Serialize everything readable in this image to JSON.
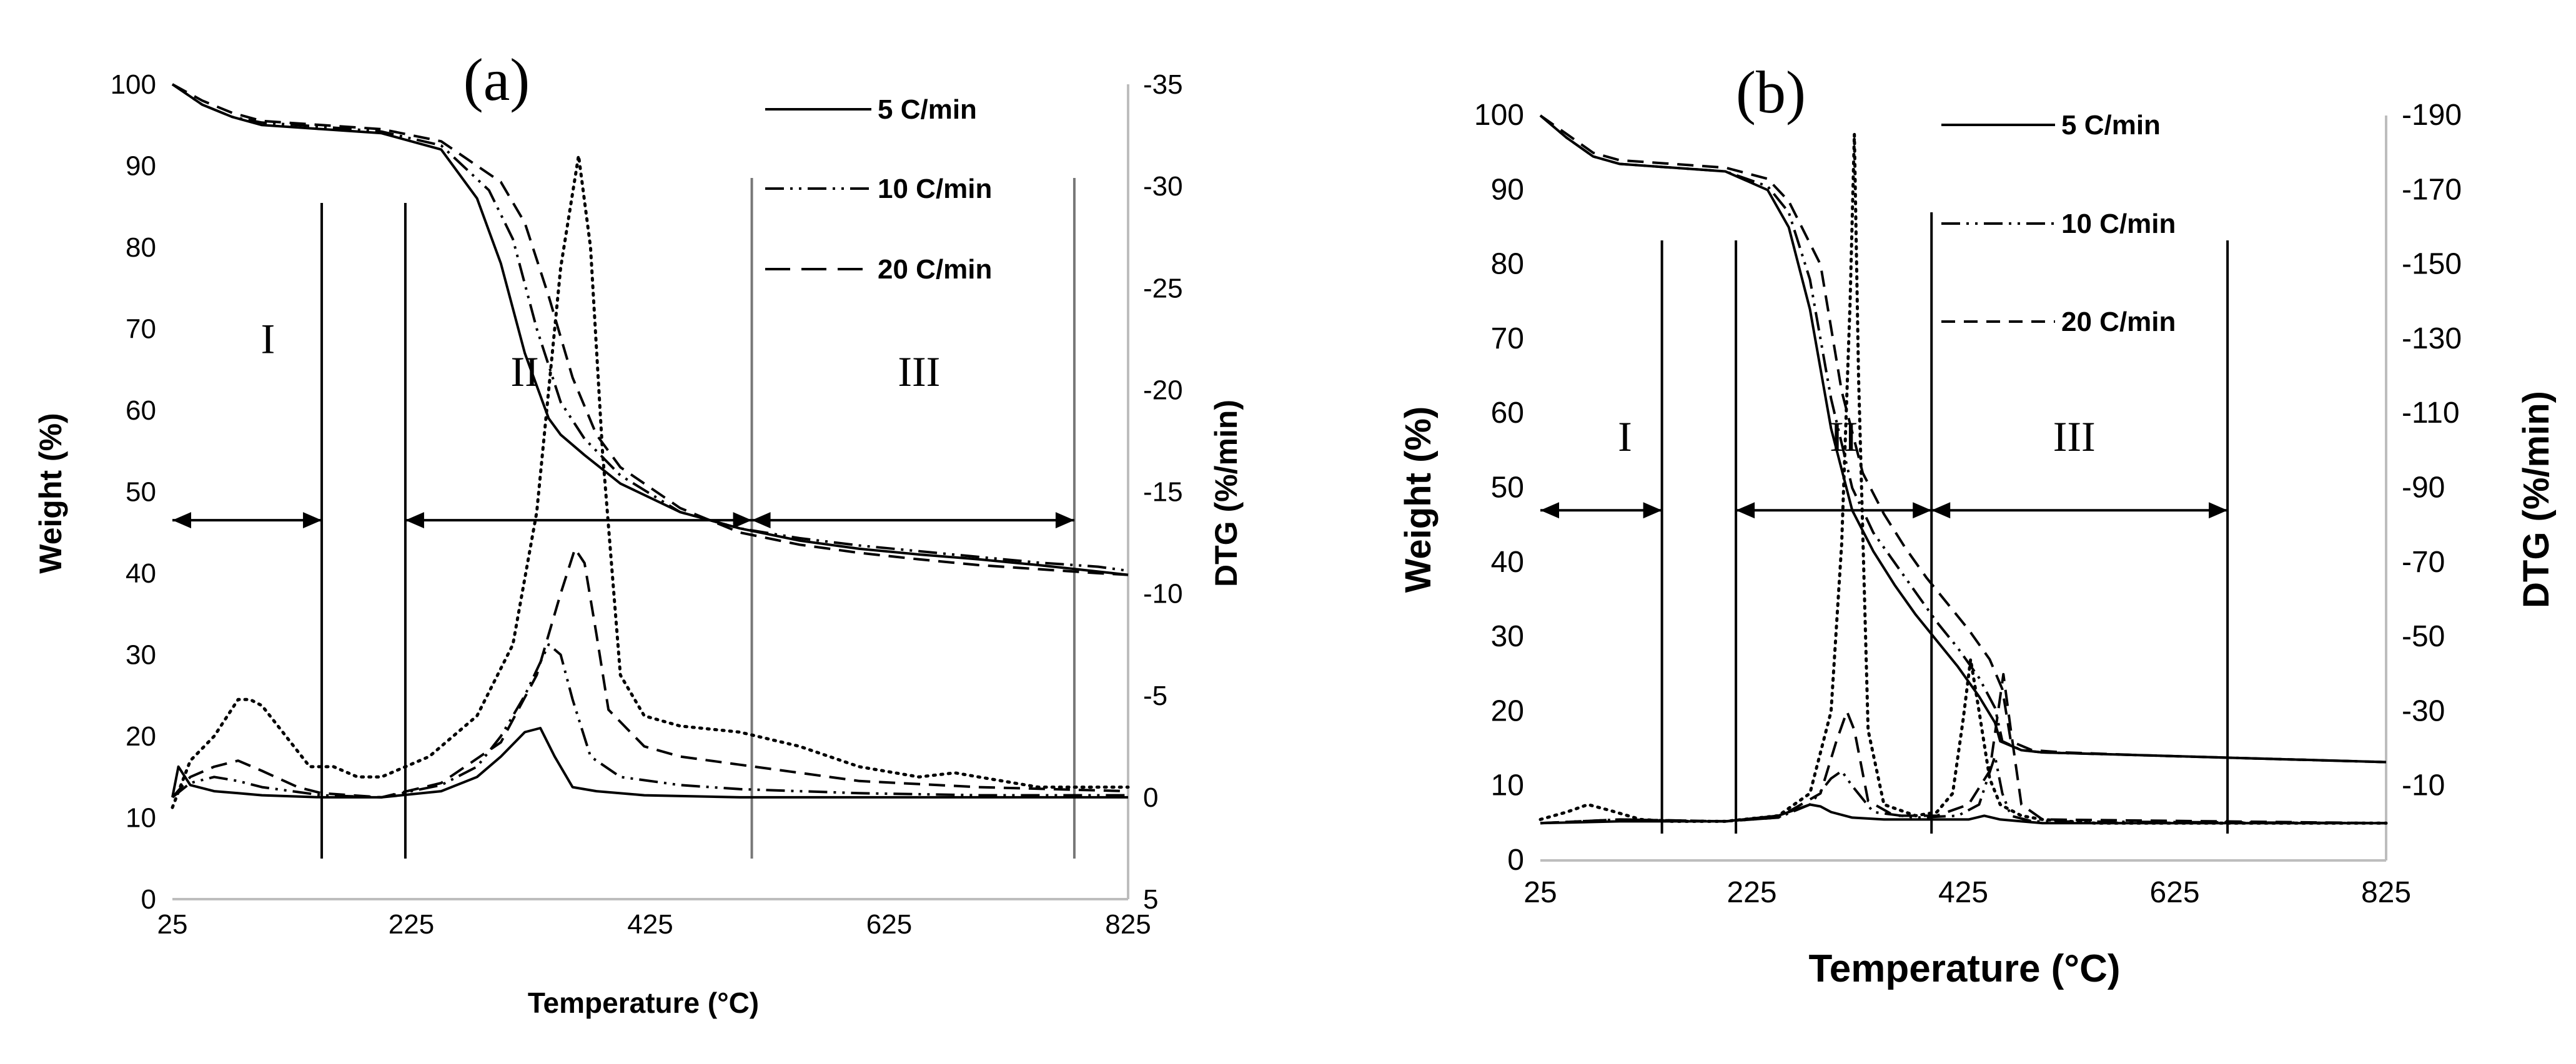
{
  "chart_data": [
    {
      "type": "line",
      "panel_label": "(a)",
      "xlabel": "Temperature (°C)",
      "ylabel": "Weight (%)",
      "y2label": "DTG (%/min)",
      "xlim": [
        25,
        825
      ],
      "ylim": [
        0,
        100
      ],
      "y2lim": [
        5,
        -35
      ],
      "x_ticks": [
        "25",
        "225",
        "425",
        "625",
        "825"
      ],
      "y_ticks": [
        "0",
        "10",
        "20",
        "30",
        "40",
        "50",
        "60",
        "70",
        "80",
        "90",
        "100"
      ],
      "y2_ticks": [
        "5",
        "0",
        "-5",
        "-10",
        "-15",
        "-20",
        "-25",
        "-30",
        "-35"
      ],
      "legend": [
        "5 C/min",
        "10 C/min",
        "20 C/min"
      ],
      "regions": [
        {
          "label": "I",
          "from": 25,
          "to": 150,
          "label_x": 105,
          "label_y": 67
        },
        {
          "label": "II",
          "from": 220,
          "to": 510,
          "label_x": 320,
          "label_y": 63
        },
        {
          "label": "III",
          "from": 510,
          "to": 780,
          "label_x": 650,
          "label_y": 63
        }
      ],
      "boundaries": [
        150,
        220,
        510,
        780
      ],
      "arrow_y": 46.5,
      "series": [
        {
          "name": "5 C/min",
          "axis": "weight",
          "style": "solid",
          "x": [
            25,
            50,
            75,
            100,
            150,
            200,
            250,
            280,
            300,
            320,
            340,
            350,
            370,
            400,
            450,
            500,
            550,
            600,
            650,
            700,
            750,
            800,
            825
          ],
          "y": [
            100,
            97.5,
            96,
            95,
            94.5,
            94,
            92,
            86,
            78,
            67,
            59,
            57,
            54.5,
            51,
            47.5,
            45.5,
            44,
            43,
            42.3,
            41.7,
            41,
            40.2,
            39.8
          ]
        },
        {
          "name": "10 C/min",
          "axis": "weight",
          "style": "dashdot",
          "x": [
            25,
            50,
            75,
            100,
            150,
            200,
            250,
            290,
            310,
            330,
            350,
            370,
            400,
            450,
            500,
            550,
            600,
            650,
            700,
            750,
            800,
            825
          ],
          "y": [
            100,
            97.5,
            96,
            95.3,
            94.8,
            94.2,
            92.5,
            87,
            81,
            70,
            61,
            56.5,
            52,
            47.5,
            45.5,
            44.3,
            43.4,
            42.7,
            42,
            41.3,
            40.8,
            40.3
          ]
        },
        {
          "name": "20 C/min",
          "axis": "weight",
          "style": "dashed",
          "x": [
            25,
            50,
            75,
            100,
            150,
            200,
            250,
            300,
            320,
            340,
            360,
            380,
            400,
            450,
            500,
            550,
            600,
            650,
            700,
            750,
            800,
            825
          ],
          "y": [
            100,
            98,
            96.5,
            95.5,
            95,
            94.5,
            93,
            88,
            83,
            74,
            64,
            57,
            53,
            48,
            45,
            43.5,
            42.5,
            41.7,
            41,
            40.5,
            40,
            39.8
          ]
        },
        {
          "name": "DTG 5 C/min",
          "axis": "dtg",
          "style": "solid",
          "x": [
            25,
            30,
            40,
            60,
            80,
            100,
            150,
            200,
            250,
            280,
            300,
            320,
            333,
            345,
            360,
            380,
            420,
            500,
            600,
            700,
            825
          ],
          "y": [
            0,
            -1.5,
            -0.6,
            -0.3,
            -0.2,
            -0.1,
            0,
            0,
            -0.3,
            -1,
            -2,
            -3.2,
            -3.4,
            -2,
            -0.5,
            -0.3,
            -0.1,
            0,
            0,
            0,
            0
          ]
        },
        {
          "name": "DTG 10 C/min",
          "axis": "dtg",
          "style": "dashdot",
          "x": [
            25,
            40,
            60,
            80,
            100,
            150,
            200,
            250,
            280,
            300,
            320,
            340,
            350,
            360,
            375,
            400,
            450,
            500,
            600,
            700,
            825
          ],
          "y": [
            0,
            -0.7,
            -1,
            -0.8,
            -0.5,
            -0.1,
            0,
            -0.6,
            -1.5,
            -3,
            -5,
            -7.5,
            -7,
            -4.8,
            -2,
            -1,
            -0.6,
            -0.4,
            -0.2,
            -0.1,
            -0.1
          ]
        },
        {
          "name": "DTG 20 C/min",
          "axis": "dtg",
          "style": "dashed",
          "x": [
            25,
            40,
            60,
            80,
            100,
            130,
            150,
            200,
            250,
            300,
            330,
            350,
            362,
            370,
            380,
            390,
            420,
            450,
            500,
            550,
            600,
            700,
            825
          ],
          "y": [
            0,
            -1,
            -1.5,
            -1.8,
            -1.3,
            -0.5,
            -0.2,
            0,
            -0.7,
            -2.7,
            -6,
            -10,
            -12.2,
            -11.5,
            -8,
            -4.3,
            -2.5,
            -2,
            -1.6,
            -1.2,
            -0.8,
            -0.5,
            -0.3
          ]
        },
        {
          "name": "DTG dotted",
          "axis": "dtg",
          "style": "dotted",
          "x": [
            25,
            40,
            60,
            80,
            90,
            100,
            120,
            140,
            160,
            180,
            200,
            240,
            280,
            310,
            330,
            350,
            365,
            375,
            385,
            400,
            420,
            450,
            500,
            550,
            600,
            650,
            680,
            700,
            750,
            825
          ],
          "y": [
            0.5,
            -1.8,
            -3,
            -4.8,
            -4.8,
            -4.5,
            -3,
            -1.5,
            -1.5,
            -1,
            -1,
            -2,
            -4,
            -7.5,
            -14,
            -26,
            -31.5,
            -27,
            -17,
            -6,
            -4,
            -3.5,
            -3.2,
            -2.5,
            -1.5,
            -1,
            -1.2,
            -1,
            -0.5,
            -0.5
          ]
        }
      ]
    },
    {
      "type": "line",
      "panel_label": "(b)",
      "xlabel": "Temperature (°C)",
      "ylabel": "Weight (%)",
      "y2label": "DTG (%/min)",
      "xlim": [
        25,
        825
      ],
      "ylim": [
        0,
        100
      ],
      "y2lim": [
        10,
        -190
      ],
      "x_ticks": [
        "25",
        "225",
        "425",
        "625",
        "825"
      ],
      "y_ticks": [
        "0",
        "10",
        "20",
        "30",
        "40",
        "50",
        "60",
        "70",
        "80",
        "90",
        "100"
      ],
      "y2_ticks": [
        "-10",
        "-30",
        "-50",
        "-70",
        "-90",
        "-110",
        "-130",
        "-150",
        "-170",
        "-190"
      ],
      "legend": [
        "5 C/min",
        "10 C/min",
        "20 C/min"
      ],
      "regions": [
        {
          "label": "I",
          "from": 25,
          "to": 140,
          "label_x": 105,
          "label_y": 55
        },
        {
          "label": "II",
          "from": 210,
          "to": 395,
          "label_x": 312,
          "label_y": 55
        },
        {
          "label": "III",
          "from": 395,
          "to": 675,
          "label_x": 530,
          "label_y": 55
        }
      ],
      "boundaries": [
        140,
        210,
        395,
        675
      ],
      "arrow_y": 47,
      "series": [
        {
          "name": "5 C/min",
          "axis": "weight",
          "style": "solid",
          "x": [
            25,
            50,
            75,
            100,
            150,
            200,
            240,
            260,
            280,
            300,
            320,
            340,
            360,
            380,
            400,
            420,
            440,
            455,
            460,
            480,
            500,
            600,
            700,
            825
          ],
          "y": [
            100,
            97,
            94.5,
            93.5,
            93,
            92.5,
            90,
            85,
            74,
            58,
            47,
            41.5,
            37,
            33,
            29.5,
            26,
            22,
            18.5,
            16,
            14.8,
            14.5,
            14.1,
            13.7,
            13.2
          ]
        },
        {
          "name": "10 C/min",
          "axis": "weight",
          "style": "dashdot",
          "x": [
            25,
            50,
            75,
            100,
            150,
            200,
            240,
            260,
            280,
            300,
            320,
            340,
            360,
            380,
            400,
            420,
            440,
            455,
            462,
            480,
            500,
            600,
            700,
            825
          ],
          "y": [
            100,
            97,
            94.5,
            93.5,
            93,
            92.5,
            90.5,
            87,
            78,
            62,
            50,
            44,
            40,
            36,
            32,
            28.5,
            24.5,
            20.5,
            16,
            14.8,
            14.5,
            14.1,
            13.7,
            13.2
          ]
        },
        {
          "name": "20 C/min",
          "axis": "weight",
          "style": "dashed",
          "x": [
            25,
            50,
            75,
            100,
            150,
            200,
            240,
            260,
            290,
            310,
            330,
            350,
            370,
            390,
            410,
            430,
            450,
            462,
            470,
            490,
            520,
            600,
            700,
            825
          ],
          "y": [
            100,
            97.5,
            95,
            94,
            93.5,
            93,
            91.5,
            88.5,
            80,
            63,
            52,
            46.5,
            42,
            38,
            34.5,
            31,
            27,
            23,
            16,
            14.8,
            14.5,
            14.1,
            13.7,
            13.2
          ]
        },
        {
          "name": "DTG 5 C/min",
          "axis": "dtg",
          "style": "solid",
          "x": [
            25,
            100,
            200,
            250,
            270,
            280,
            290,
            300,
            320,
            350,
            400,
            430,
            445,
            460,
            480,
            500,
            825
          ],
          "y": [
            0,
            -0.5,
            -0.5,
            -2,
            -4,
            -5,
            -4.5,
            -3,
            -1.5,
            -1,
            -1,
            -1,
            -2,
            -1,
            -0.5,
            0,
            0
          ]
        },
        {
          "name": "DTG 10 C/min",
          "axis": "dtg",
          "style": "dashdot",
          "x": [
            25,
            100,
            200,
            250,
            280,
            300,
            310,
            320,
            340,
            380,
            420,
            440,
            455,
            462,
            470,
            490,
            825
          ],
          "y": [
            0,
            -1,
            -0.5,
            -1.5,
            -5,
            -12,
            -14,
            -10,
            -3,
            -1.5,
            -2,
            -5,
            -18,
            -8,
            -2,
            -0.5,
            0
          ]
        },
        {
          "name": "DTG 20 C/min",
          "axis": "dtg",
          "style": "dashed",
          "x": [
            25,
            100,
            200,
            250,
            290,
            305,
            315,
            322,
            335,
            360,
            400,
            430,
            450,
            458,
            463,
            470,
            480,
            500,
            825
          ],
          "y": [
            0,
            -1,
            -0.5,
            -1.5,
            -8,
            -22,
            -30,
            -25,
            -6,
            -2,
            -2,
            -5,
            -14,
            -30,
            -40,
            -25,
            -5,
            -1,
            0
          ]
        },
        {
          "name": "DTG dotted",
          "axis": "dtg",
          "style": "dotted",
          "x": [
            25,
            50,
            70,
            90,
            120,
            150,
            200,
            250,
            280,
            300,
            310,
            318,
            322,
            326,
            335,
            350,
            380,
            400,
            415,
            425,
            432,
            440,
            450,
            460,
            480,
            500,
            550,
            825
          ],
          "y": [
            -1,
            -3,
            -5,
            -3.5,
            -1,
            -0.5,
            -0.5,
            -2,
            -8,
            -30,
            -75,
            -140,
            -185,
            -120,
            -25,
            -5,
            -2,
            -3,
            -8,
            -28,
            -44,
            -30,
            -12,
            -5,
            -2,
            -1,
            0,
            0
          ]
        }
      ]
    }
  ]
}
